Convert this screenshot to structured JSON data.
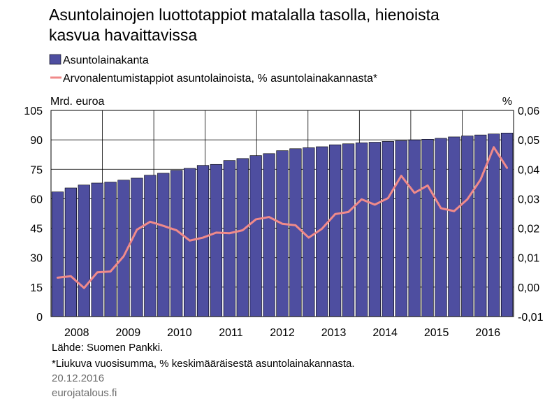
{
  "page": {
    "title_line1": "Asuntolainojen luottotappiot matalalla tasolla, hienoista",
    "title_line2": "kasvua havaittavissa",
    "source": "Lähde: Suomen Pankki.",
    "note": "*Liukuva vuosisumma, % keskimääräisestä asuntolainakannasta.",
    "date": "20.12.2016",
    "site": "eurojatalous.fi"
  },
  "chart_data": {
    "type": "bar",
    "title": "Asuntolainojen luottotappiot matalalla tasolla, hienoista kasvua havaittavissa",
    "left_axis_label": "Mrd. euroa",
    "right_axis_label": "%",
    "ylim_left": [
      0,
      105
    ],
    "ylim_right": [
      -0.01,
      0.06
    ],
    "left_ticks": [
      "105",
      "90",
      "75",
      "60",
      "45",
      "30",
      "15",
      "0"
    ],
    "right_ticks": [
      "0,06",
      "0,05",
      "0,04",
      "0,03",
      "0,02",
      "0,01",
      "0,00",
      "-0,01"
    ],
    "x_tick_labels": [
      "2008",
      "2009",
      "2010",
      "2011",
      "2012",
      "2013",
      "2014",
      "2015",
      "2016"
    ],
    "grid": true,
    "legend_position": "top-left",
    "series": [
      {
        "name": "Asuntolainakanta",
        "type": "bar",
        "axis": "left",
        "color": "#4e4ea0",
        "values": [
          63.5,
          65.5,
          67,
          68,
          68.5,
          69.5,
          70.5,
          72,
          73,
          74.5,
          75.5,
          77,
          77.5,
          79.5,
          80.5,
          82,
          83,
          84.5,
          85.5,
          86,
          86.5,
          87.5,
          88,
          88.5,
          88.8,
          89.2,
          89.6,
          90,
          90.3,
          90.8,
          91.5,
          92,
          92.5,
          93,
          93.5
        ]
      },
      {
        "name": "Arvonalentumistappiot asuntolainoista, % asuntolainakannasta*",
        "type": "line",
        "axis": "right",
        "color": "#f08a8a",
        "values": [
          0.0032,
          0.0037,
          -0.0003,
          0.005,
          0.0053,
          0.0105,
          0.0195,
          0.0222,
          0.0208,
          0.0193,
          0.0158,
          0.0168,
          0.0185,
          0.0183,
          0.0193,
          0.023,
          0.0238,
          0.0215,
          0.021,
          0.0168,
          0.0198,
          0.0248,
          0.0255,
          0.0298,
          0.028,
          0.0302,
          0.0378,
          0.032,
          0.0345,
          0.0268,
          0.0258,
          0.0298,
          0.0365,
          0.0475,
          0.0405
        ]
      }
    ]
  }
}
